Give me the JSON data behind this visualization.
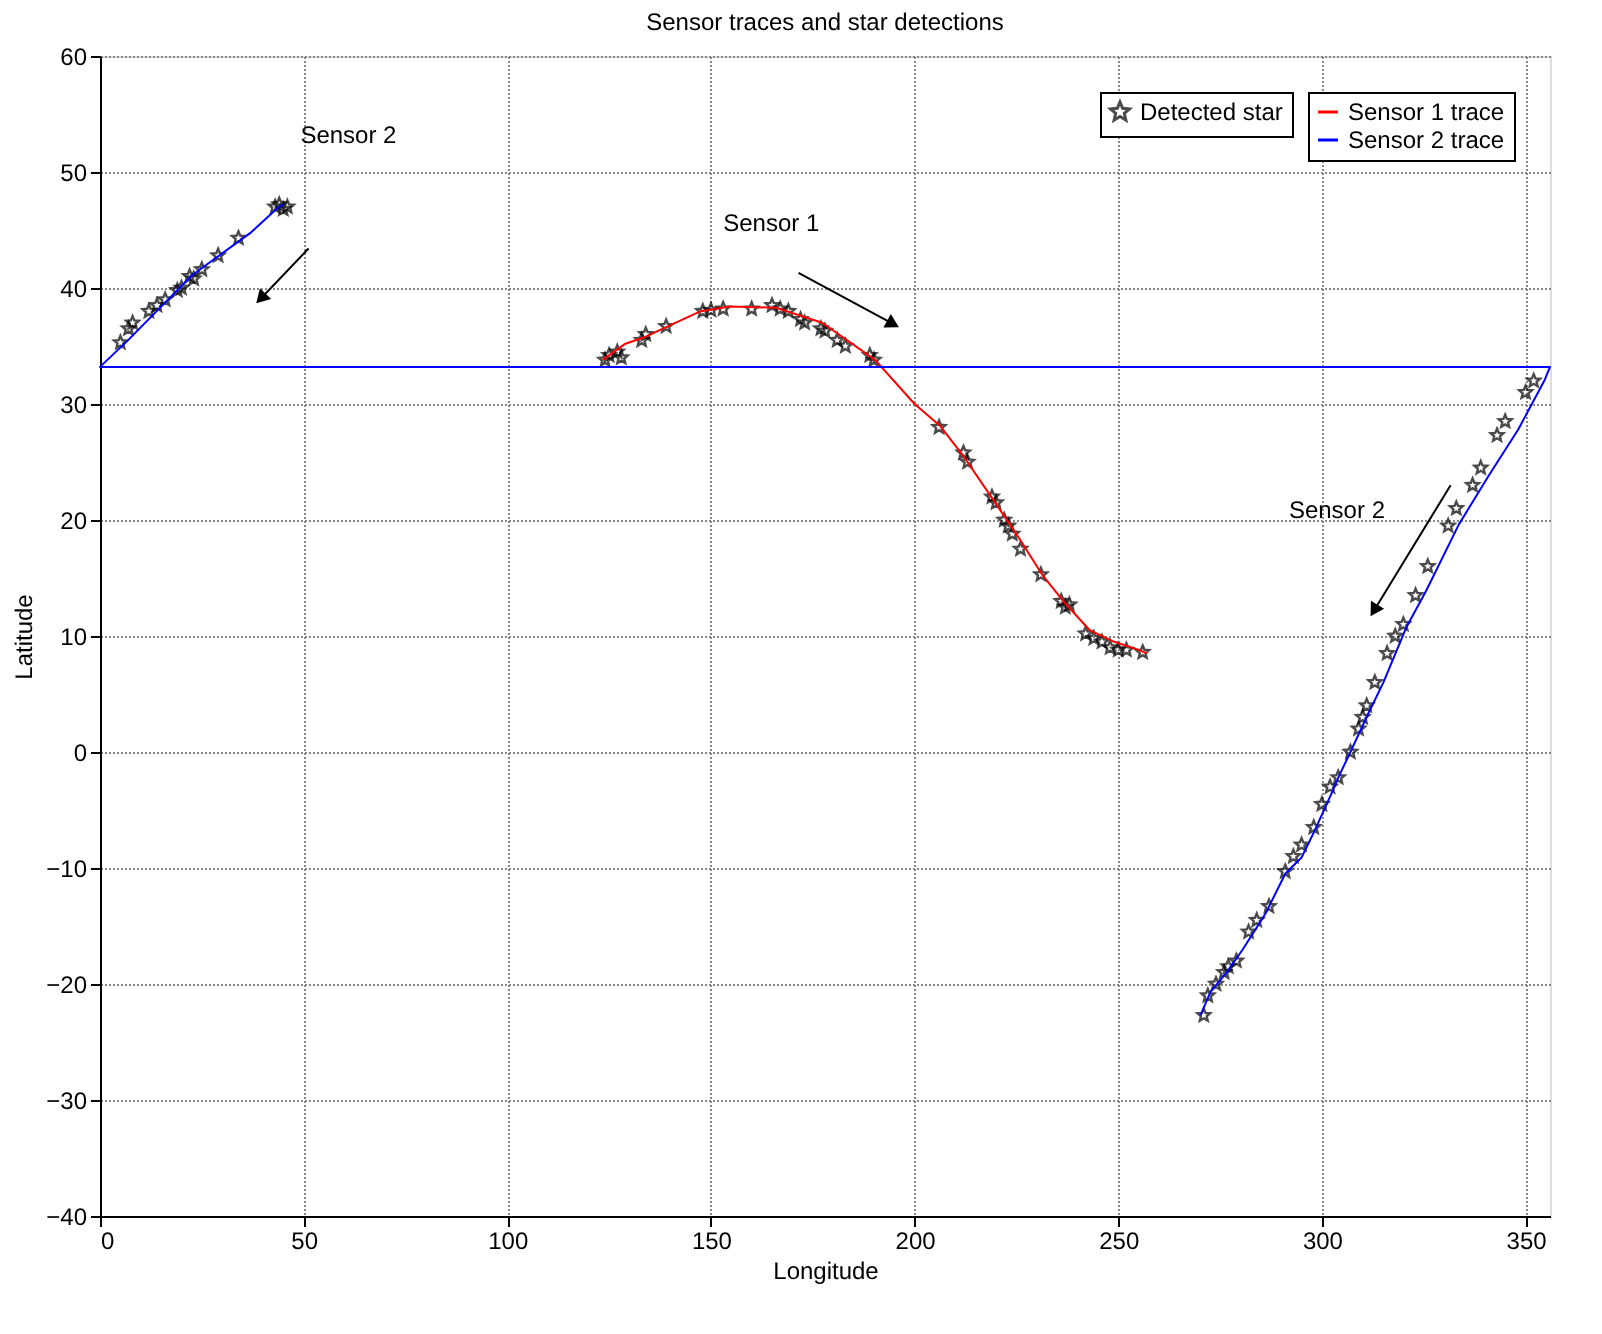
{
  "chart_data": {
    "type": "line",
    "title": "Sensor traces and star detections",
    "xlabel": "Longitude",
    "ylabel": "Latitude",
    "xlim": [
      0,
      356
    ],
    "ylim": [
      -40,
      60
    ],
    "xticks": [
      0,
      50,
      100,
      150,
      200,
      250,
      300,
      350
    ],
    "yticks": [
      -40,
      -30,
      -20,
      -10,
      0,
      10,
      20,
      30,
      40,
      50,
      60
    ],
    "grid": true,
    "legend": "top right",
    "series": [
      {
        "name": "Sensor 1 trace",
        "color": "#ff0000",
        "line_style": "solid",
        "x": [
          123.4,
          129,
          134,
          139.4,
          147.5,
          154.7,
          166,
          177.3,
          190.3,
          200,
          206.3,
          212,
          219.2,
          225.7,
          231.3,
          237,
          243,
          249,
          255,
          257
        ],
        "values": [
          33.8,
          35.2,
          35.8,
          36.7,
          38.0,
          38.4,
          38.3,
          37.0,
          33.8,
          30.0,
          28.1,
          25.5,
          21.8,
          18.4,
          15.3,
          12.8,
          10.5,
          9.5,
          8.8,
          8.5
        ]
      },
      {
        "name": "Sensor 2 trace",
        "color": "#0000ff",
        "line_style": "solid",
        "x": [
          45,
          43.6,
          37.1,
          22.6,
          6.6,
          0,
          356,
          354.6,
          348.2,
          340.9,
          333.6,
          325.6,
          320.8,
          315.1,
          311.1,
          307,
          303.9,
          302.2,
          298.2,
          295,
          291,
          286.2,
          280.6,
          276.6,
          272.6,
          270.2
        ],
        "values": [
          47.2,
          46.9,
          44.8,
          41.1,
          35.4,
          33.2,
          33.2,
          32.0,
          27.8,
          23.8,
          19.6,
          13.9,
          10.8,
          6.0,
          3.1,
          0,
          -2.3,
          -3.7,
          -6.8,
          -9.1,
          -10.5,
          -13.9,
          -17.0,
          -19.0,
          -20.7,
          -22.7
        ]
      },
      {
        "name": "Detected star",
        "type": "scatter",
        "marker": "star",
        "color": "#000000",
        "x": [
          124,
          125,
          127,
          128,
          133,
          134,
          139,
          148,
          150,
          153,
          160,
          165,
          167,
          169,
          172,
          173,
          177,
          178,
          181,
          183,
          189,
          190,
          206,
          212,
          213,
          219,
          220,
          222,
          223,
          224,
          226,
          231,
          236,
          237,
          238,
          242,
          244,
          246,
          248,
          250,
          252,
          256,
          5,
          7,
          8,
          12,
          14,
          16,
          19,
          20,
          22,
          23,
          25,
          29,
          34,
          43,
          44,
          45,
          46,
          271,
          272,
          274,
          276,
          277,
          279,
          282,
          284,
          287,
          291,
          293,
          295,
          298,
          300,
          302,
          304,
          307,
          309,
          310,
          311,
          313,
          316,
          318,
          320,
          323,
          326,
          331,
          333,
          337,
          339,
          343,
          345,
          350,
          352
        ],
        "values": [
          33.8,
          34.2,
          34.5,
          34.0,
          35.5,
          36,
          36.7,
          38,
          38.1,
          38.2,
          38.2,
          38.5,
          38.2,
          38,
          37.3,
          37.0,
          36.5,
          36.3,
          35.5,
          35,
          34.2,
          33.8,
          28,
          25.8,
          25,
          22,
          21.5,
          20,
          19.5,
          18.8,
          17.5,
          15.3,
          13,
          12.5,
          12.7,
          10.2,
          9.8,
          9.5,
          9,
          8.8,
          8.8,
          8.6,
          35.3,
          36.5,
          37,
          38,
          38.5,
          39,
          39.8,
          40,
          41,
          40.8,
          41.6,
          42.8,
          44.3,
          47,
          47.2,
          46.8,
          47,
          -22.7,
          -21,
          -20,
          -19,
          -18.5,
          -18,
          -15.5,
          -14.5,
          -13.3,
          -10.3,
          -9,
          -8,
          -6.5,
          -4.5,
          -3,
          -2.2,
          0,
          2,
          3,
          4,
          6,
          8.5,
          10,
          11,
          13.5,
          16,
          19.5,
          21,
          23,
          24.5,
          27.3,
          28.5,
          31,
          32
        ]
      }
    ],
    "annotations": [
      "Sensor 2",
      "Sensor 1",
      "Sensor 2"
    ]
  }
}
